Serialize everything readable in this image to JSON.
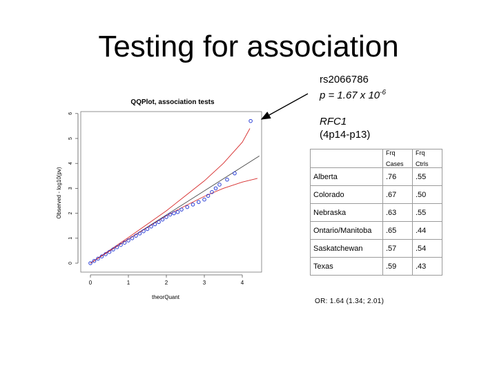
{
  "slide": {
    "title": "Testing for association",
    "snp_id": "rs2066786",
    "pvalue_base": "p = 1.67 x 10",
    "pvalue_exp": "-6",
    "gene": "RFC1",
    "locus": "(4p14-p13)",
    "or_text": "OR: 1.64 (1.34; 2.01)"
  },
  "table": {
    "headers": [
      {
        "top": "",
        "bottom": ""
      },
      {
        "top": "Frq",
        "bottom": "Cases"
      },
      {
        "top": "Frq",
        "bottom": "Ctrls"
      }
    ],
    "rows": [
      [
        "Alberta",
        ".76",
        ".55"
      ],
      [
        "Colorado",
        ".67",
        ".50"
      ],
      [
        "Nebraska",
        ".63",
        ".55"
      ],
      [
        "Ontario/Manitoba",
        ".65",
        ".44"
      ],
      [
        "Saskatchewan",
        ".57",
        ".54"
      ],
      [
        "Texas",
        ".59",
        ".43"
      ]
    ]
  },
  "chart_data": {
    "type": "scatter",
    "title": "QQPlot, association tests",
    "xlabel": "theorQuant",
    "ylabel": "Observed - log10(pv)",
    "xlim": [
      0,
      4.5
    ],
    "ylim": [
      0,
      6
    ],
    "xticks": [
      0,
      1,
      2,
      3,
      4
    ],
    "yticks": [
      0,
      1,
      2,
      3,
      4,
      5,
      6
    ],
    "grid": false,
    "colors": {
      "points": "#2b3fd6",
      "ci": "#d62a2a",
      "expected": "#444444"
    },
    "series": [
      {
        "kind": "points",
        "x": [
          0.0,
          0.1,
          0.2,
          0.3,
          0.4,
          0.5,
          0.6,
          0.7,
          0.8,
          0.9,
          1.0,
          1.1,
          1.2,
          1.3,
          1.4,
          1.5,
          1.6,
          1.7,
          1.8,
          1.9,
          2.0,
          2.1,
          2.2,
          2.3,
          2.4,
          2.55,
          2.7,
          2.85,
          3.0,
          3.1,
          3.2,
          3.3,
          3.4,
          3.6,
          3.8,
          4.22
        ],
        "y": [
          0.0,
          0.09,
          0.18,
          0.27,
          0.36,
          0.45,
          0.55,
          0.64,
          0.73,
          0.82,
          0.91,
          1.0,
          1.1,
          1.19,
          1.28,
          1.37,
          1.47,
          1.56,
          1.65,
          1.75,
          1.85,
          1.95,
          2.0,
          2.05,
          2.15,
          2.25,
          2.35,
          2.45,
          2.55,
          2.7,
          2.85,
          3.0,
          3.15,
          3.35,
          3.6,
          5.7
        ]
      },
      {
        "kind": "expected",
        "x": [
          0,
          4.45
        ],
        "y": [
          0,
          4.3
        ]
      },
      {
        "kind": "ci-upper",
        "x": [
          0,
          1,
          2,
          2.5,
          3,
          3.5,
          4.0,
          4.2
        ],
        "y": [
          0,
          1.03,
          2.1,
          2.7,
          3.3,
          4.0,
          4.85,
          5.4
        ]
      },
      {
        "kind": "ci-lower",
        "x": [
          0,
          1,
          2,
          2.5,
          3,
          3.5,
          4.0,
          4.4
        ],
        "y": [
          0,
          0.96,
          1.9,
          2.3,
          2.68,
          3.0,
          3.25,
          3.4
        ]
      }
    ]
  }
}
